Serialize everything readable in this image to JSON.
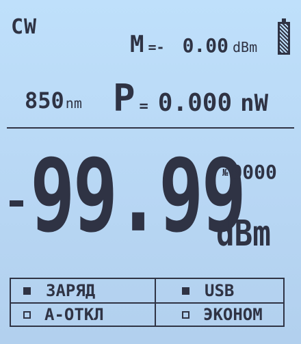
{
  "display": {
    "mode": "CW",
    "memory": {
      "label": "M",
      "eq": "=-",
      "value": "0.00",
      "unit": "dBm"
    },
    "battery_icon": "battery-icon",
    "wavelength": {
      "value": "850",
      "unit": "nm"
    },
    "power": {
      "label": "P",
      "eq": "=",
      "value": "0.000",
      "unit": "nW"
    },
    "reading": {
      "sign": "-",
      "value": "99.99",
      "unit": "dBm"
    },
    "counter": {
      "symbol": "№",
      "value": "0000"
    }
  },
  "status": {
    "charge": {
      "label": "ЗАРЯД",
      "active": true
    },
    "usb": {
      "label": "USB",
      "active": true
    },
    "auto_off": {
      "label": "А-ОТКЛ",
      "active": false
    },
    "eco": {
      "label": "ЭКОНОМ",
      "active": false
    }
  }
}
